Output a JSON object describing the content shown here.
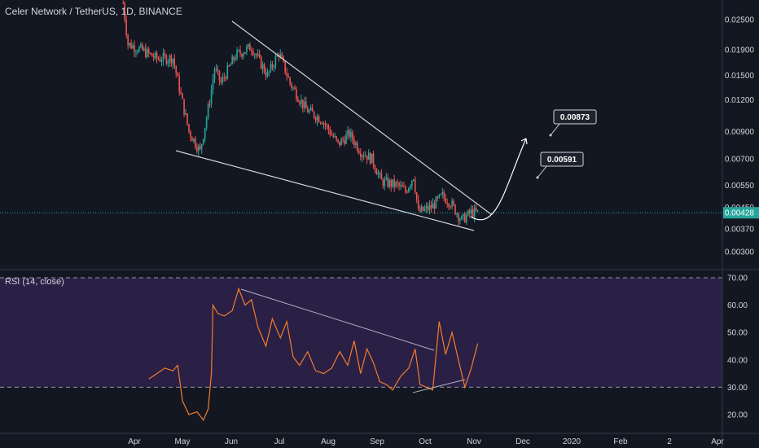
{
  "header": {
    "title": "Celer Network / TetherUS, 1D, BINANCE"
  },
  "rsi": {
    "title": "RSI (14, close)"
  },
  "colors": {
    "background": "#131722",
    "up": "#26a69a",
    "down": "#ef5350",
    "rsi_line": "#f57c2c",
    "rsi_band": "#2a1f45",
    "price_line": "#26a69a",
    "trendline": "#d1d4dc"
  },
  "chart_data": [
    {
      "type": "candlestick",
      "title": "Celer Network / TetherUS, 1D, BINANCE",
      "scale": "log",
      "y_ticks": [
        "0.02500",
        "0.01900",
        "0.01500",
        "0.01200",
        "0.00900",
        "0.00700",
        "0.00550",
        "0.00450",
        "0.00370",
        "0.00300"
      ],
      "x_ticks": [
        "Apr",
        "May",
        "Jun",
        "Jul",
        "Aug",
        "Sep",
        "Oct",
        "Nov",
        "Dec",
        "2020",
        "Feb",
        "2",
        "Apr"
      ],
      "last_price": "0.00428",
      "targets": [
        "0.00873",
        "0.00591"
      ],
      "series": [
        {
          "x": "2019-03-25",
          "close": 0.029
        },
        {
          "x": "2019-03-28",
          "close": 0.02
        },
        {
          "x": "2019-04-05",
          "close": 0.019
        },
        {
          "x": "2019-04-15",
          "close": 0.0175
        },
        {
          "x": "2019-04-25",
          "close": 0.0176
        },
        {
          "x": "2019-04-30",
          "close": 0.0125
        },
        {
          "x": "2019-05-05",
          "close": 0.009
        },
        {
          "x": "2019-05-12",
          "close": 0.0075
        },
        {
          "x": "2019-05-18",
          "close": 0.012
        },
        {
          "x": "2019-05-21",
          "close": 0.016
        },
        {
          "x": "2019-05-25",
          "close": 0.014
        },
        {
          "x": "2019-06-03",
          "close": 0.018
        },
        {
          "x": "2019-06-13",
          "close": 0.0195
        },
        {
          "x": "2019-06-23",
          "close": 0.015
        },
        {
          "x": "2019-06-30",
          "close": 0.0185
        },
        {
          "x": "2019-07-07",
          "close": 0.014
        },
        {
          "x": "2019-07-17",
          "close": 0.011
        },
        {
          "x": "2019-07-27",
          "close": 0.01
        },
        {
          "x": "2019-08-06",
          "close": 0.008
        },
        {
          "x": "2019-08-13",
          "close": 0.0088
        },
        {
          "x": "2019-08-20",
          "close": 0.0075
        },
        {
          "x": "2019-08-27",
          "close": 0.007
        },
        {
          "x": "2019-09-02",
          "close": 0.0057
        },
        {
          "x": "2019-09-12",
          "close": 0.0055
        },
        {
          "x": "2019-09-17",
          "close": 0.0052
        },
        {
          "x": "2019-09-22",
          "close": 0.006
        },
        {
          "x": "2019-09-25",
          "close": 0.0043
        },
        {
          "x": "2019-10-03",
          "close": 0.0045
        },
        {
          "x": "2019-10-10",
          "close": 0.005
        },
        {
          "x": "2019-10-15",
          "close": 0.0047
        },
        {
          "x": "2019-10-22",
          "close": 0.004
        },
        {
          "x": "2019-10-28",
          "close": 0.0043
        },
        {
          "x": "2019-11-01",
          "close": 0.00428
        }
      ]
    },
    {
      "type": "line",
      "title": "RSI (14, close)",
      "y_ticks": [
        "70.00",
        "60.00",
        "50.00",
        "40.00",
        "30.00",
        "20.00"
      ],
      "ylim": [
        15,
        73
      ],
      "bands": [
        30,
        70
      ],
      "series": [
        {
          "name": "RSI (14, close)",
          "x": [
            "2019-04-10",
            "2019-04-15",
            "2019-04-20",
            "2019-04-25",
            "2019-04-28",
            "2019-05-01",
            "2019-05-05",
            "2019-05-10",
            "2019-05-14",
            "2019-05-17",
            "2019-05-19",
            "2019-05-20",
            "2019-05-23",
            "2019-05-27",
            "2019-06-01",
            "2019-06-05",
            "2019-06-09",
            "2019-06-13",
            "2019-06-17",
            "2019-06-22",
            "2019-06-26",
            "2019-07-01",
            "2019-07-05",
            "2019-07-09",
            "2019-07-13",
            "2019-07-18",
            "2019-07-23",
            "2019-07-28",
            "2019-08-02",
            "2019-08-07",
            "2019-08-12",
            "2019-08-16",
            "2019-08-20",
            "2019-08-24",
            "2019-08-28",
            "2019-09-01",
            "2019-09-05",
            "2019-09-09",
            "2019-09-14",
            "2019-09-19",
            "2019-09-23",
            "2019-09-26",
            "2019-09-30",
            "2019-10-04",
            "2019-10-08",
            "2019-10-12",
            "2019-10-16",
            "2019-10-20",
            "2019-10-24",
            "2019-10-28",
            "2019-11-01"
          ],
          "values": [
            33,
            35,
            37,
            36,
            38,
            25,
            20,
            21,
            18,
            22,
            35,
            60,
            57,
            56,
            58,
            66,
            60,
            62,
            52,
            45,
            55,
            48,
            54,
            41,
            38,
            43,
            36,
            35,
            37,
            43,
            38,
            47,
            35,
            44,
            39,
            32,
            31,
            29,
            34,
            37,
            44,
            31,
            30,
            29,
            54,
            42,
            50,
            40,
            30,
            37,
            46
          ]
        }
      ]
    }
  ]
}
